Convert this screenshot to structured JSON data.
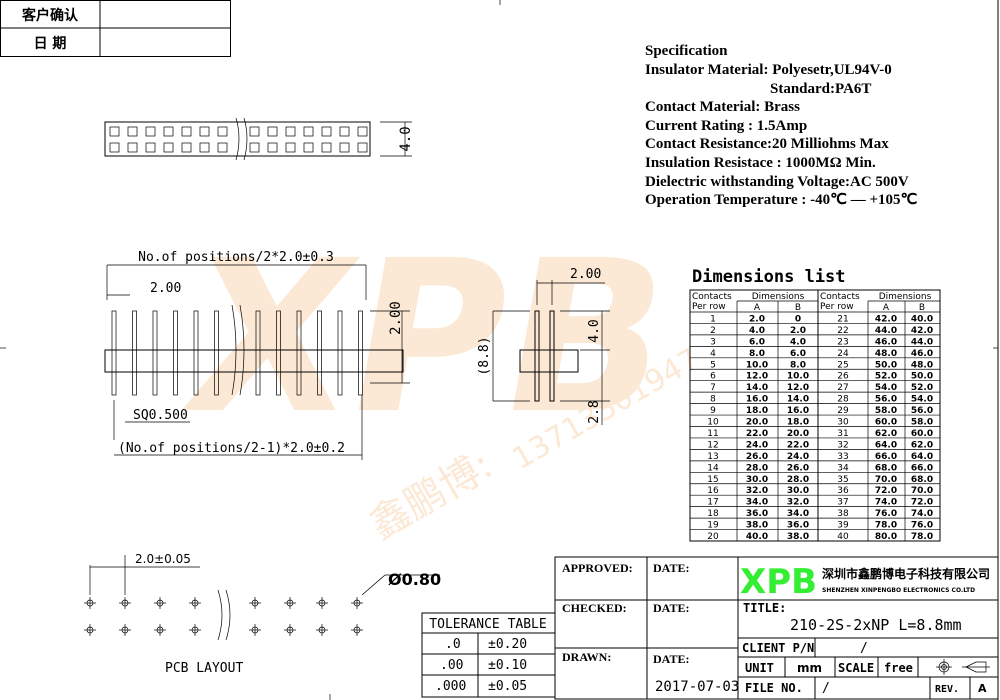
{
  "confirm_box": {
    "customer_confirm": "客户确认",
    "date": "日  期"
  },
  "specification": {
    "heading": "Specification",
    "lines": [
      "Insulator Material: Polyesetr,UL94V-0",
      "Standard:PA6T",
      "Contact Material:   Brass",
      "Current Rating : 1.5Amp",
      "Contact Resistance:20 Milliohms Max",
      "Insulation Resistace : 1000MΩ Min.",
      "Dielectric  withstanding Voltage:AC 500V",
      "Operation Temperature : -40℃  —   +105℃"
    ]
  },
  "drawing": {
    "top_height": "4.0",
    "overall_length": "No.of positions/2*2.0±0.3",
    "pitch": "2.00",
    "pin_height": "2.00",
    "pin_square": "SQ0.500",
    "row_length": "(No.of positions/2-1)*2.0±0.2",
    "side_pitch": "2.00",
    "side_total": "(8.8)",
    "side_upper": "4.0",
    "side_lower": "2.8"
  },
  "watermark": {
    "logo": "XPB",
    "phone": "13713301947",
    "name": "鑫鹏博:"
  },
  "dimensions_list": {
    "title": "Dimensions list",
    "headers": {
      "contacts": "Contacts",
      "per_row": "Per row",
      "dimensions": "Dimensions",
      "a": "A",
      "b": "B"
    },
    "rows": [
      [
        "1",
        "2.0",
        "0"
      ],
      [
        "2",
        "4.0",
        "2.0"
      ],
      [
        "3",
        "6.0",
        "4.0"
      ],
      [
        "4",
        "8.0",
        "6.0"
      ],
      [
        "5",
        "10.0",
        "8.0"
      ],
      [
        "6",
        "12.0",
        "10.0"
      ],
      [
        "7",
        "14.0",
        "12.0"
      ],
      [
        "8",
        "16.0",
        "14.0"
      ],
      [
        "9",
        "18.0",
        "16.0"
      ],
      [
        "10",
        "20.0",
        "18.0"
      ],
      [
        "11",
        "22.0",
        "20.0"
      ],
      [
        "12",
        "24.0",
        "22.0"
      ],
      [
        "13",
        "26.0",
        "24.0"
      ],
      [
        "14",
        "28.0",
        "26.0"
      ],
      [
        "15",
        "30.0",
        "28.0"
      ],
      [
        "16",
        "32.0",
        "30.0"
      ],
      [
        "17",
        "34.0",
        "32.0"
      ],
      [
        "18",
        "36.0",
        "34.0"
      ],
      [
        "19",
        "38.0",
        "36.0"
      ],
      [
        "20",
        "40.0",
        "38.0"
      ],
      [
        "21",
        "42.0",
        "40.0"
      ],
      [
        "22",
        "44.0",
        "42.0"
      ],
      [
        "23",
        "46.0",
        "44.0"
      ],
      [
        "24",
        "48.0",
        "46.0"
      ],
      [
        "25",
        "50.0",
        "48.0"
      ],
      [
        "26",
        "52.0",
        "50.0"
      ],
      [
        "27",
        "54.0",
        "52.0"
      ],
      [
        "28",
        "56.0",
        "54.0"
      ],
      [
        "29",
        "58.0",
        "56.0"
      ],
      [
        "30",
        "60.0",
        "58.0"
      ],
      [
        "31",
        "62.0",
        "60.0"
      ],
      [
        "32",
        "64.0",
        "62.0"
      ],
      [
        "33",
        "66.0",
        "64.0"
      ],
      [
        "34",
        "68.0",
        "66.0"
      ],
      [
        "35",
        "70.0",
        "68.0"
      ],
      [
        "36",
        "72.0",
        "70.0"
      ],
      [
        "37",
        "74.0",
        "72.0"
      ],
      [
        "38",
        "76.0",
        "74.0"
      ],
      [
        "39",
        "78.0",
        "76.0"
      ],
      [
        "40",
        "80.0",
        "78.0"
      ]
    ]
  },
  "pcb": {
    "pitch": "2.0±0.05",
    "hole": "Ø0.80",
    "label": "PCB LAYOUT"
  },
  "tolerance": {
    "title": "TOLERANCE TABLE",
    "rows": [
      [
        ".0",
        "±0.20"
      ],
      [
        ".00",
        "±0.10"
      ],
      [
        ".000",
        "±0.05"
      ]
    ]
  },
  "title_block": {
    "approved": "APPROVED:",
    "checked": "CHECKED:",
    "drawn": "DRAWN:",
    "date_label": "DATE:",
    "drawn_date": "2017-07-03",
    "logo": "XPB",
    "company_cn": "深圳市鑫鹏博电子科技有限公司",
    "company_en": "SHENZHEN XINPENGBO ELECTRONICS CO.LTD",
    "title_label": "TITLE:",
    "title": "210-2S-2xNP L=8.8mm",
    "client_pn_label": "CLIENT P/N",
    "client_pn": "/",
    "unit_label": "UNIT",
    "unit": "mm",
    "scale_label": "SCALE",
    "scale": "free",
    "file_no_label": "FILE NO.",
    "file_no": "/",
    "rev_label": "REV.",
    "rev": "A",
    "logo_color": "#33ee33"
  }
}
